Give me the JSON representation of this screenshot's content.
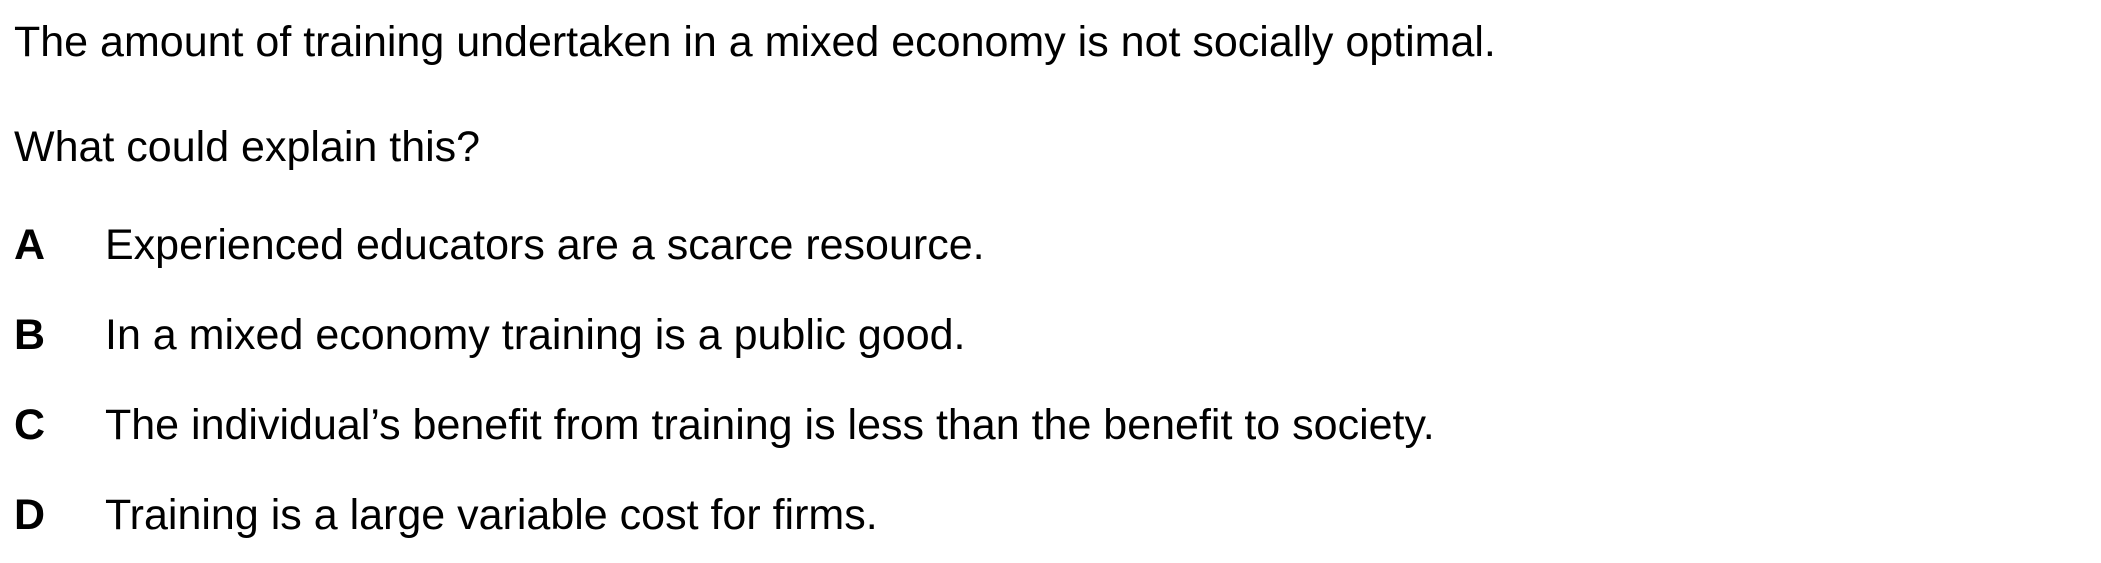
{
  "question": {
    "stem": "The amount of training undertaken in a mixed economy is not socially optimal.",
    "prompt": "What could explain this?"
  },
  "options": [
    {
      "letter": "A",
      "text": "Experienced educators are a scarce resource."
    },
    {
      "letter": "B",
      "text": "In a mixed economy training is a public good."
    },
    {
      "letter": "C",
      "text": "The individual’s benefit from training is less than the benefit to society."
    },
    {
      "letter": "D",
      "text": "Training is a large variable cost for firms."
    }
  ]
}
